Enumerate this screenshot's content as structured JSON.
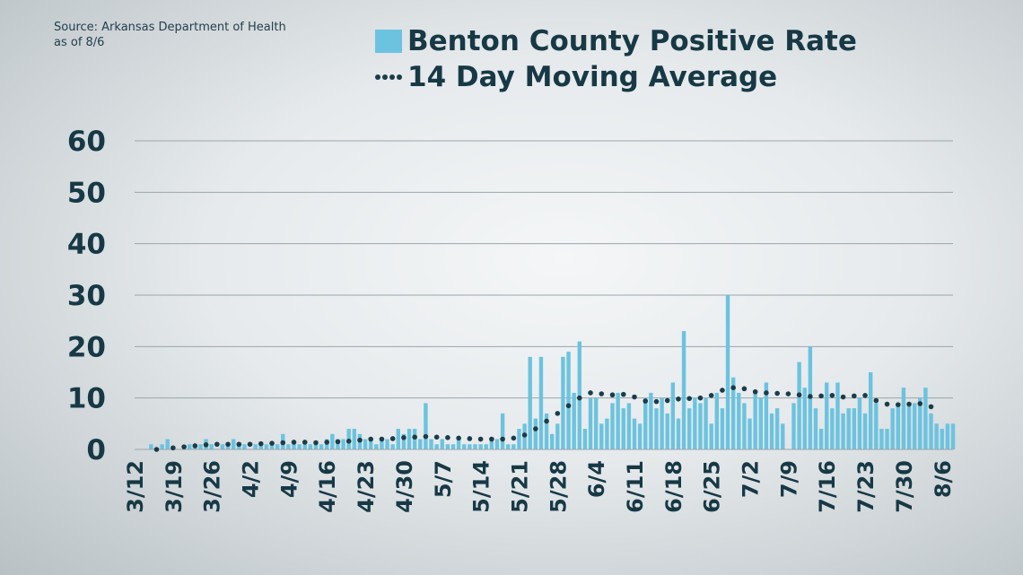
{
  "source": {
    "line1": "Source: Arkansas Department of Health",
    "line2": "as of 8/6"
  },
  "legend": {
    "bars": "Benton County Positive Rate",
    "line": "14 Day Moving Average"
  },
  "colors": {
    "bar": "#6cc3df",
    "dots": "#1b3c49",
    "grid": "#9aa6ab",
    "text": "#173945"
  },
  "chart_data": {
    "type": "bar",
    "x_start": "3/12",
    "x_ticks": [
      "3/12",
      "3/19",
      "3/26",
      "4/2",
      "4/9",
      "4/16",
      "4/23",
      "4/30",
      "5/7",
      "5/14",
      "5/21",
      "5/28",
      "6/4",
      "6/11",
      "6/18",
      "6/25",
      "7/2",
      "7/9",
      "7/16",
      "7/23",
      "7/30",
      "8/6"
    ],
    "y_ticks": [
      0,
      10,
      20,
      30,
      40,
      50,
      60
    ],
    "ylim": [
      0,
      60
    ],
    "grid": true,
    "series": [
      {
        "name": "Benton County Positive Rate",
        "kind": "bar",
        "values": [
          0,
          0,
          0,
          1,
          0,
          1,
          2,
          0,
          0,
          0,
          1,
          1,
          1,
          2,
          1,
          0,
          1,
          1,
          2,
          1,
          1,
          0,
          1,
          1,
          1,
          1,
          1,
          3,
          1,
          1,
          1,
          1,
          1,
          1,
          1,
          2,
          3,
          2,
          2,
          4,
          4,
          3,
          2,
          2,
          1,
          2,
          2,
          1,
          4,
          3,
          4,
          4,
          2,
          9,
          2,
          1,
          2,
          1,
          1,
          2,
          1,
          1,
          1,
          1,
          1,
          2,
          2,
          7,
          1,
          1,
          4,
          5,
          18,
          6,
          18,
          7,
          3,
          5,
          18,
          19,
          11,
          21,
          4,
          10,
          10,
          5,
          6,
          9,
          11,
          8,
          9,
          6,
          5,
          10,
          11,
          8,
          10,
          7,
          13,
          6,
          23,
          8,
          10,
          9,
          10,
          5,
          11,
          8,
          30,
          14,
          11,
          9,
          6,
          11,
          10,
          13,
          7,
          8,
          5,
          0,
          9,
          17,
          12,
          20,
          8,
          4,
          13,
          8,
          13,
          7,
          8,
          8,
          10,
          7,
          15,
          9,
          4,
          4,
          8,
          9,
          12,
          9,
          9,
          10,
          12,
          7,
          5,
          4,
          5,
          5
        ]
      },
      {
        "name": "14 Day Moving Average",
        "kind": "dots",
        "points": [
          [
            "3/16",
            0
          ],
          [
            "3/19",
            0.3
          ],
          [
            "3/21",
            0.5
          ],
          [
            "3/23",
            0.7
          ],
          [
            "3/25",
            0.9
          ],
          [
            "3/27",
            1
          ],
          [
            "3/29",
            1
          ],
          [
            "3/31",
            1
          ],
          [
            "4/2",
            1
          ],
          [
            "4/4",
            1.1
          ],
          [
            "4/6",
            1.2
          ],
          [
            "4/8",
            1.3
          ],
          [
            "4/10",
            1.4
          ],
          [
            "4/12",
            1.4
          ],
          [
            "4/14",
            1.3
          ],
          [
            "4/16",
            1.4
          ],
          [
            "4/18",
            1.5
          ],
          [
            "4/20",
            1.6
          ],
          [
            "4/22",
            1.8
          ],
          [
            "4/24",
            2
          ],
          [
            "4/26",
            2
          ],
          [
            "4/28",
            2.1
          ],
          [
            "4/30",
            2.3
          ],
          [
            "5/2",
            2.4
          ],
          [
            "5/4",
            2.5
          ],
          [
            "5/6",
            2.4
          ],
          [
            "5/8",
            2.3
          ],
          [
            "5/10",
            2.2
          ],
          [
            "5/12",
            2.1
          ],
          [
            "5/14",
            2
          ],
          [
            "5/16",
            2
          ],
          [
            "5/18",
            2
          ],
          [
            "5/20",
            2.2
          ],
          [
            "5/22",
            2.8
          ],
          [
            "5/24",
            4
          ],
          [
            "5/26",
            5.5
          ],
          [
            "5/28",
            7
          ],
          [
            "5/30",
            8.5
          ],
          [
            "6/1",
            10
          ],
          [
            "6/3",
            11
          ],
          [
            "6/5",
            10.8
          ],
          [
            "6/7",
            10.6
          ],
          [
            "6/9",
            10.7
          ],
          [
            "6/11",
            10.2
          ],
          [
            "6/13",
            9.4
          ],
          [
            "6/15",
            9.3
          ],
          [
            "6/17",
            9.5
          ],
          [
            "6/19",
            9.8
          ],
          [
            "6/21",
            9.9
          ],
          [
            "6/23",
            10
          ],
          [
            "6/25",
            10.5
          ],
          [
            "6/27",
            11.5
          ],
          [
            "6/29",
            12
          ],
          [
            "7/1",
            11.8
          ],
          [
            "7/3",
            11.2
          ],
          [
            "7/5",
            11
          ],
          [
            "7/7",
            10.9
          ],
          [
            "7/9",
            10.8
          ],
          [
            "7/11",
            10.6
          ],
          [
            "7/13",
            10.3
          ],
          [
            "7/15",
            10.4
          ],
          [
            "7/17",
            10.5
          ],
          [
            "7/19",
            10.2
          ],
          [
            "7/21",
            10.4
          ],
          [
            "7/23",
            10.5
          ],
          [
            "7/25",
            9.5
          ],
          [
            "7/27",
            8.8
          ],
          [
            "7/29",
            8.7
          ],
          [
            "7/31",
            8.8
          ],
          [
            "8/2",
            8.9
          ],
          [
            "8/4",
            8.3
          ]
        ]
      }
    ]
  }
}
